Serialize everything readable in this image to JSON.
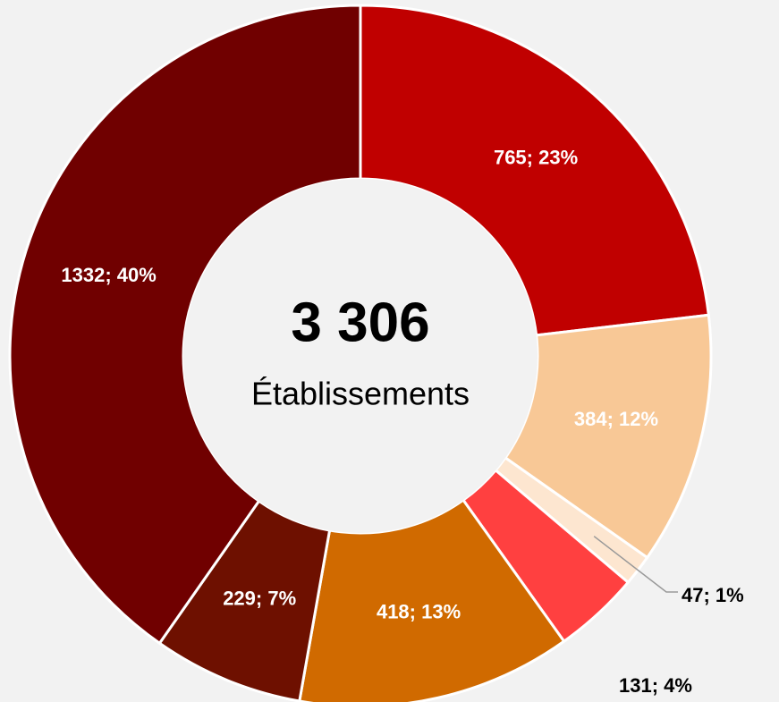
{
  "chart_data": {
    "type": "donut",
    "center_value": "3 306",
    "center_label": "Établissements",
    "values": [
      765,
      384,
      47,
      131,
      418,
      229,
      1332
    ],
    "value_labels": [
      "765; 23%",
      "384; 12%",
      "47; 1%",
      "131; 4%",
      "418; 13%",
      "229; 7%",
      "1332; 40%"
    ],
    "colors": [
      "#c00000",
      "#f8c896",
      "#fde6d0",
      "#ff4040",
      "#d06a00",
      "#6e1000",
      "#700000"
    ]
  }
}
